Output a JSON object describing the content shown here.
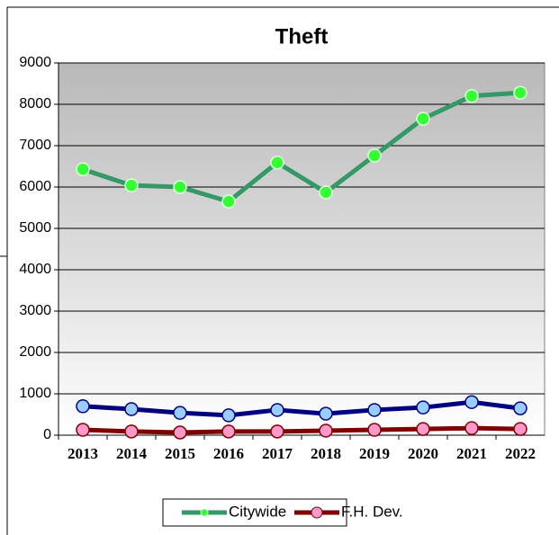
{
  "chart_data": {
    "type": "line",
    "title": "Theft",
    "categories": [
      "2013",
      "2014",
      "2015",
      "2016",
      "2017",
      "2018",
      "2019",
      "2020",
      "2021",
      "2022"
    ],
    "series": [
      {
        "name": "Citywide",
        "color": "#339966",
        "marker_color": "#33ff33",
        "values": [
          6430,
          6040,
          6000,
          5650,
          6590,
          5870,
          6760,
          7650,
          8200,
          8280
        ]
      },
      {
        "color": "#000080",
        "marker_color": "#99ccff",
        "values": [
          700,
          630,
          540,
          480,
          610,
          520,
          610,
          670,
          800,
          650
        ]
      },
      {
        "name": "F.H. Dev.",
        "color": "#800000",
        "marker_color": "#ff99cc",
        "values": [
          130,
          90,
          65,
          90,
          90,
          110,
          130,
          150,
          170,
          150
        ]
      }
    ],
    "ylim": [
      0,
      9000
    ],
    "yticks": [
      0,
      1000,
      2000,
      3000,
      4000,
      5000,
      6000,
      7000,
      8000,
      9000
    ],
    "grid": true
  }
}
